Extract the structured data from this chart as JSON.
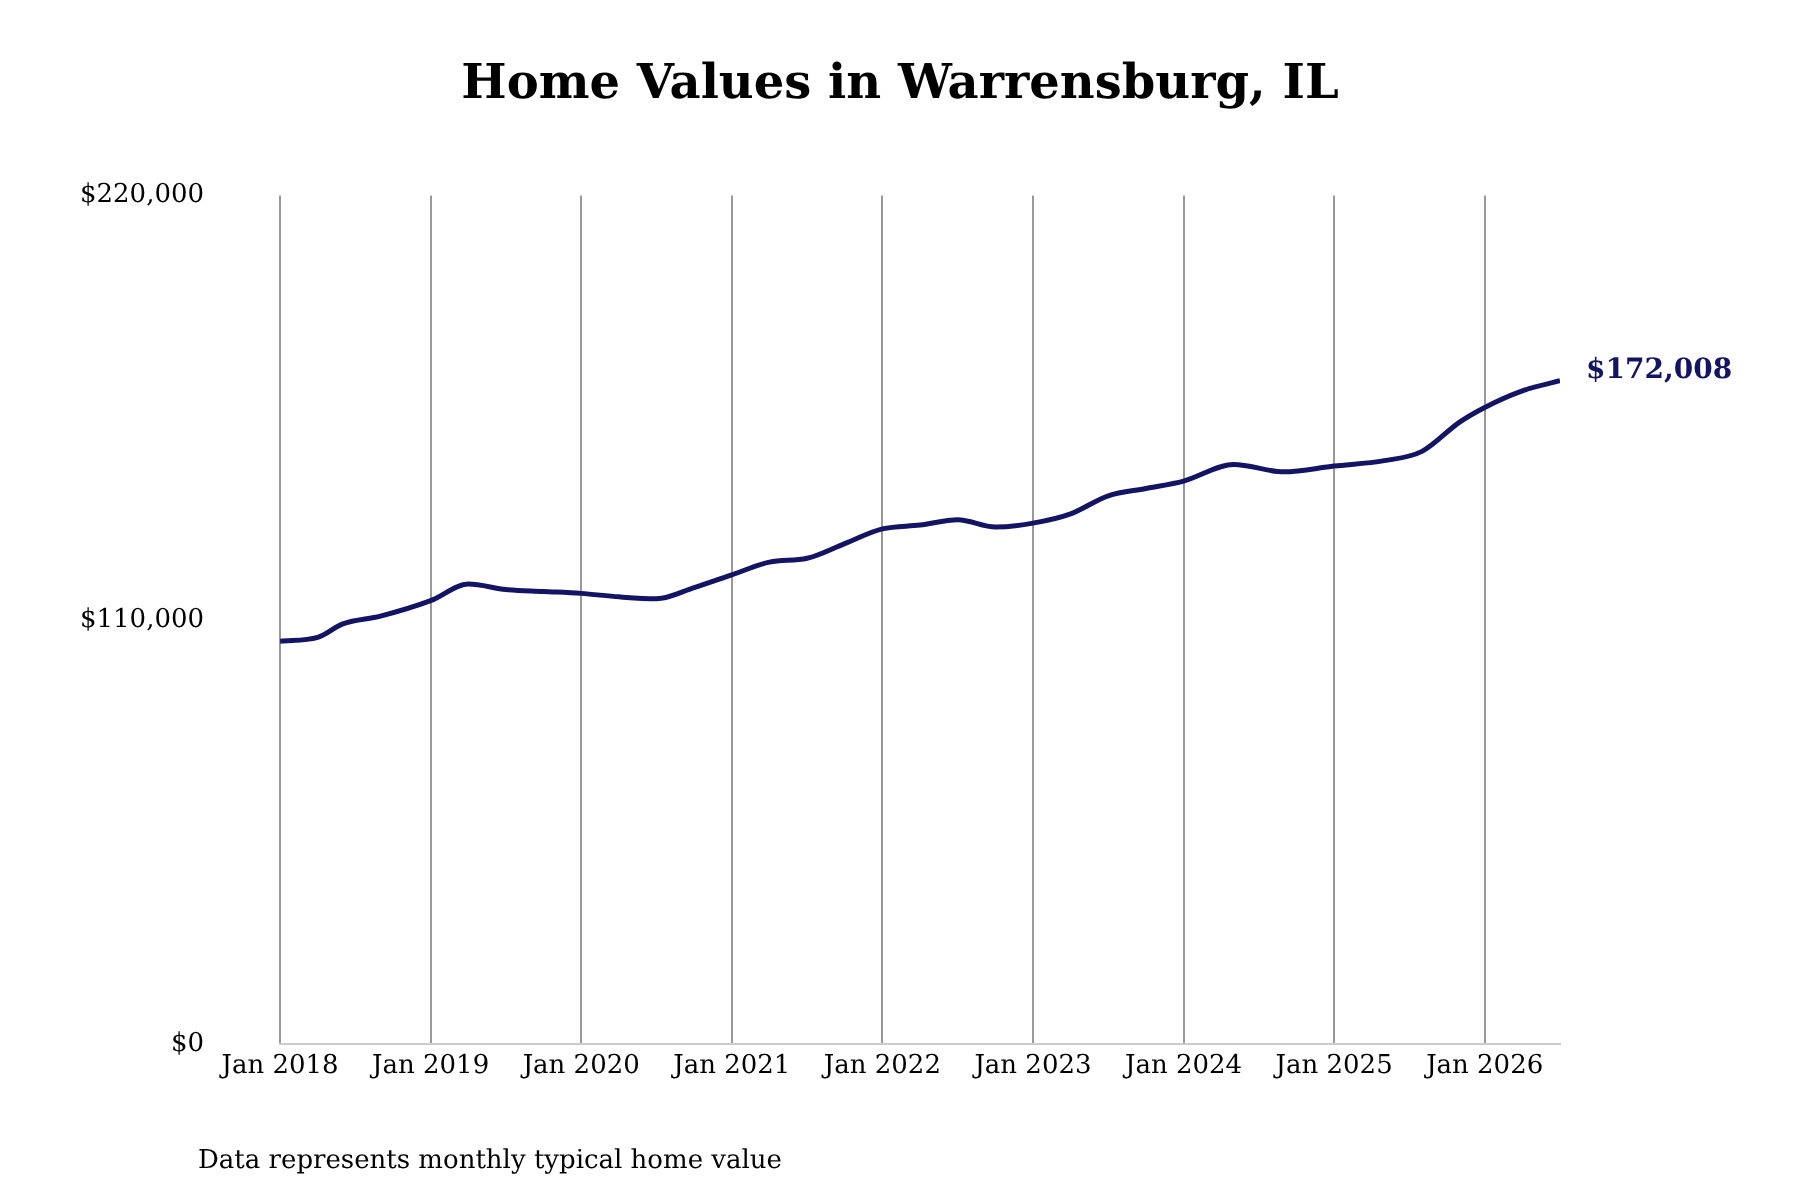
{
  "chart_data": {
    "type": "line",
    "title": "Home Values in Warrensburg, IL",
    "x": [
      "2018-01",
      "2018-04",
      "2018-06",
      "2018-09",
      "2019-01",
      "2019-04",
      "2019-07",
      "2019-10",
      "2020-01",
      "2020-04",
      "2020-07",
      "2020-10",
      "2021-01",
      "2021-04",
      "2021-07",
      "2021-10",
      "2022-01",
      "2022-04",
      "2022-07",
      "2022-10",
      "2023-01",
      "2023-04",
      "2023-07",
      "2023-10",
      "2024-01",
      "2024-05",
      "2024-09",
      "2025-01",
      "2025-05",
      "2025-08",
      "2025-11",
      "2026-01",
      "2026-04",
      "2026-07"
    ],
    "series": [
      {
        "color": "#141464",
        "values": [
          104500,
          105500,
          109000,
          111000,
          115000,
          119300,
          117900,
          117400,
          116900,
          116000,
          115500,
          118400,
          121700,
          125000,
          126000,
          129800,
          133600,
          134600,
          136000,
          134100,
          135100,
          137500,
          142200,
          144100,
          146000,
          150300,
          148400,
          149900,
          151300,
          153700,
          161300,
          165100,
          169400,
          172008
        ]
      }
    ],
    "xticks": [
      {
        "value": "2018-01",
        "label": "Jan 2018"
      },
      {
        "value": "2019-01",
        "label": "Jan 2019"
      },
      {
        "value": "2020-01",
        "label": "Jan 2020"
      },
      {
        "value": "2021-01",
        "label": "Jan 2021"
      },
      {
        "value": "2022-01",
        "label": "Jan 2022"
      },
      {
        "value": "2023-01",
        "label": "Jan 2023"
      },
      {
        "value": "2024-01",
        "label": "Jan 2024"
      },
      {
        "value": "2025-01",
        "label": "Jan 2025"
      },
      {
        "value": "2026-01",
        "label": "Jan 2026"
      }
    ],
    "xlim": [
      "2018-01",
      "2026-07"
    ],
    "ylim": [
      0,
      220000
    ],
    "yticks": [
      {
        "value": 0,
        "label": "$0"
      },
      {
        "value": 110000,
        "label": "$110,000"
      },
      {
        "value": 220000,
        "label": "$220,000"
      }
    ],
    "grid": "x",
    "legend": false,
    "marker": "none",
    "line_style": "solid",
    "annotations": [
      {
        "text": "$172,008",
        "x": "2026-07",
        "y": 172008
      },
      "Data represents monthly typical home value"
    ]
  }
}
